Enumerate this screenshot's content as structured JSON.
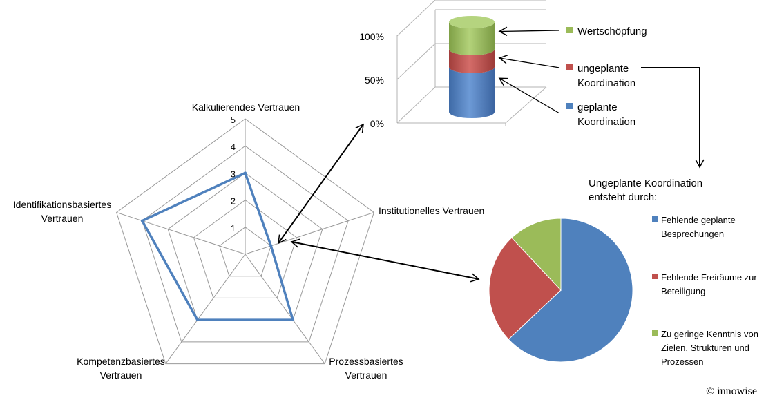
{
  "chart_data": [
    {
      "type": "radar",
      "axes": [
        "Kalkulierendes Vertrauen",
        "Institutionelles Vertrauen",
        "Prozessbasiertes Vertrauen",
        "Kompetenzbasiertes Vertrauen",
        "Identifikationsbasiertes Vertrauen"
      ],
      "axis_label_lines": [
        [
          "Kalkulierendes Vertrauen"
        ],
        [
          "Institutionelles Vertrauen"
        ],
        [
          "Prozessbasiertes",
          "Vertrauen"
        ],
        [
          "Kompetenzbasiertes",
          "Vertrauen"
        ],
        [
          "Identifikationsbasiertes",
          "Vertrauen"
        ]
      ],
      "values": [
        3,
        1,
        3,
        3,
        4
      ],
      "range": [
        0,
        5
      ],
      "ticks": [
        "1",
        "2",
        "3",
        "4",
        "5"
      ],
      "series_color": "#4f81bd",
      "grid_color": "#999999"
    },
    {
      "type": "bar",
      "stacked": true,
      "shape": "3d-cylinder",
      "categories": [
        ""
      ],
      "series": [
        {
          "name": "geplante Koordination",
          "values": [
            50
          ],
          "color": "#4f81bd",
          "label_lines": [
            "geplante",
            "Koordination"
          ]
        },
        {
          "name": "ungeplante Koordination",
          "values": [
            20
          ],
          "color": "#c0504d",
          "label_lines": [
            "ungeplante",
            "Koordination"
          ]
        },
        {
          "name": "Wertschöpfung",
          "values": [
            30
          ],
          "color": "#9bbb59",
          "label_lines": [
            "Wertschöpfung"
          ]
        }
      ],
      "yticks": [
        "0%",
        "50%",
        "100%"
      ],
      "ylim": [
        0,
        100
      ]
    },
    {
      "type": "pie",
      "title_lines": [
        "Ungeplante Koordination",
        "entsteht durch:"
      ],
      "slices": [
        {
          "label_lines": [
            "Fehlende geplante",
            "Besprechungen"
          ],
          "value": 63,
          "color": "#4f81bd"
        },
        {
          "label_lines": [
            "Fehlende Freiräume zur",
            "Beteiligung"
          ],
          "value": 25,
          "color": "#c0504d"
        },
        {
          "label_lines": [
            "Zu geringe Kenntnis von",
            "Zielen, Strukturen und",
            "Prozessen"
          ],
          "value": 12,
          "color": "#9bbb59"
        }
      ]
    }
  ],
  "copyright": "© innowise"
}
